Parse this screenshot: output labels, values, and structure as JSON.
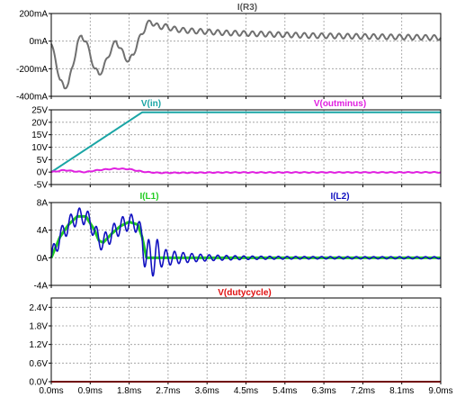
{
  "chart_data": [
    {
      "type": "line",
      "title": "",
      "series": [
        {
          "name": "I(R3)",
          "color": "#707070",
          "x": [
            0,
            0.1,
            0.2,
            0.3,
            0.4,
            0.5,
            0.6,
            0.7,
            0.8,
            0.9,
            1.0,
            1.1,
            1.2,
            1.3,
            1.4,
            1.5,
            1.6,
            1.7,
            1.8,
            1.9,
            2.0,
            2.1,
            2.2,
            2.3,
            2.4,
            2.5,
            2.6,
            2.7,
            2.8,
            3.0,
            3.2,
            3.5,
            4.0,
            5.0,
            6.0,
            7.0,
            8.0,
            9.0
          ],
          "y": [
            -0.02,
            -0.14,
            -0.28,
            -0.34,
            -0.3,
            -0.18,
            -0.02,
            0.04,
            0.0,
            -0.1,
            -0.2,
            -0.24,
            -0.2,
            -0.12,
            -0.05,
            0.0,
            -0.05,
            -0.12,
            -0.14,
            -0.1,
            0.0,
            0.05,
            0.12,
            0.14,
            0.12,
            0.1,
            0.11,
            0.1,
            0.09,
            0.08,
            0.075,
            0.07,
            0.06,
            0.05,
            0.04,
            0.035,
            0.03,
            0.025
          ],
          "ripple_amp": 0.018,
          "ripple_period_ms": 0.2
        }
      ],
      "xlim": [
        0,
        9.0
      ],
      "ylim": [
        -0.4,
        0.2
      ],
      "yticks": [
        -0.4,
        -0.2,
        0.0,
        0.2
      ],
      "ytick_labels": [
        "-400mA",
        "-200mA",
        "0mA",
        "200mA"
      ],
      "grid": true
    },
    {
      "type": "line",
      "title": "",
      "series": [
        {
          "name": "V(in)",
          "color": "#1aa5a5",
          "x": [
            0,
            2.1,
            9.0
          ],
          "y": [
            0,
            24,
            24
          ],
          "ripple_amp": 0,
          "ripple_period_ms": 0.2
        },
        {
          "name": "V(outminus)",
          "color": "#e020e0",
          "x": [
            0,
            0.3,
            0.6,
            0.8,
            1.0,
            1.2,
            1.5,
            1.8,
            2.0,
            2.2,
            2.5,
            3.0,
            4.0,
            9.0
          ],
          "y": [
            0,
            0.8,
            0.2,
            0.0,
            0.6,
            1.0,
            1.4,
            1.2,
            0.5,
            0.0,
            -0.3,
            -0.25,
            -0.15,
            -0.1
          ],
          "ripple_amp": 0.15,
          "ripple_period_ms": 0.2
        }
      ],
      "xlim": [
        0,
        9.0
      ],
      "ylim": [
        -5,
        25
      ],
      "yticks": [
        -5,
        0,
        5,
        10,
        15,
        20,
        25
      ],
      "ytick_labels": [
        "-5V",
        "0V",
        "5V",
        "10V",
        "15V",
        "20V",
        "25V"
      ],
      "grid": true,
      "frame_bold": true
    },
    {
      "type": "line",
      "title": "",
      "series": [
        {
          "name": "I(L1)",
          "color": "#22cc22",
          "x": [
            0,
            0.2,
            0.4,
            0.6,
            0.8,
            1.0,
            1.1,
            1.2,
            1.4,
            1.6,
            1.8,
            2.0,
            2.1,
            2.2,
            2.4,
            3.0,
            5.0,
            7.0,
            9.0
          ],
          "y": [
            0,
            3.0,
            4.8,
            6.0,
            6.0,
            4.0,
            2.5,
            2.2,
            3.5,
            4.6,
            5.2,
            4.8,
            3.0,
            0.0,
            0.0,
            0.0,
            0.0,
            0.0,
            0.0
          ],
          "ripple_amp": 0,
          "ripple_period_ms": 0.2
        },
        {
          "name": "I(L2)",
          "color": "#1010c0",
          "x": [
            0,
            0.2,
            0.4,
            0.6,
            0.8,
            1.0,
            1.1,
            1.2,
            1.4,
            1.6,
            1.8,
            2.0,
            2.1,
            2.2,
            2.4,
            3.0,
            5.0,
            7.0,
            9.0
          ],
          "y": [
            0,
            3.0,
            4.8,
            6.0,
            6.0,
            4.0,
            2.5,
            2.2,
            3.5,
            4.6,
            5.2,
            4.8,
            3.0,
            0.0,
            0.0,
            0.0,
            0.0,
            0.0,
            0.0
          ],
          "ripple_amp": 1.2,
          "ripple_decay_after_ms": 2.1,
          "ripple_decay_tau_ms": 1.2,
          "ripple_floor": 0.15,
          "ripple_period_ms": 0.2
        }
      ],
      "xlim": [
        0,
        9.0
      ],
      "ylim": [
        -4,
        8
      ],
      "yticks": [
        -4,
        0,
        4,
        8
      ],
      "ytick_labels": [
        "-4A",
        "0A",
        "4A",
        "8A"
      ],
      "grid": true
    },
    {
      "type": "line",
      "title": "",
      "series": [
        {
          "name": "V(dutycycle)",
          "color": "#e01010",
          "x": [
            0,
            9.0
          ],
          "y": [
            0,
            0
          ],
          "ripple_amp": 0,
          "ripple_period_ms": 0.2
        }
      ],
      "xlim": [
        0,
        9.0
      ],
      "ylim": [
        0,
        2.7
      ],
      "yticks": [
        0.0,
        0.6,
        1.2,
        1.8,
        2.4
      ],
      "ytick_labels": [
        "0.0V",
        "0.6V",
        "1.2V",
        "1.8V",
        "2.4V"
      ],
      "grid": true
    }
  ],
  "x_axis": {
    "ticks": [
      0,
      0.9,
      1.8,
      2.7,
      3.6,
      4.5,
      5.4,
      6.3,
      7.2,
      8.1,
      9.0
    ],
    "tick_labels": [
      "0.0ms",
      "0.9ms",
      "1.8ms",
      "2.7ms",
      "3.6ms",
      "4.5ms",
      "5.4ms",
      "6.3ms",
      "7.2ms",
      "8.1ms",
      "9.0ms"
    ]
  }
}
